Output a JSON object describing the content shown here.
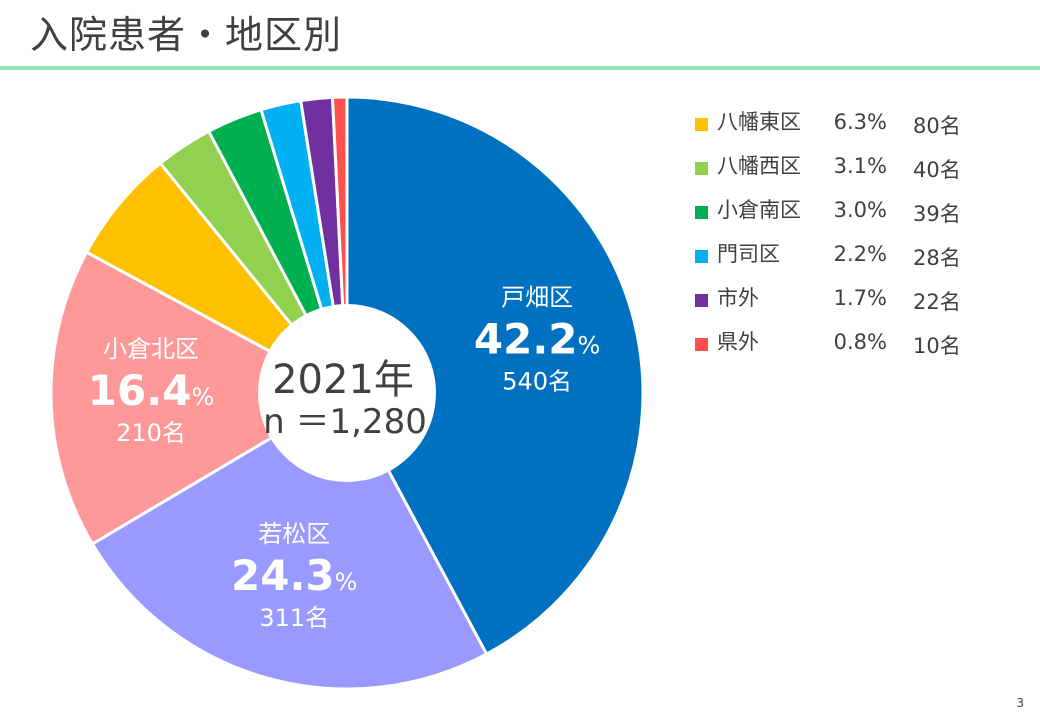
{
  "page": {
    "title": "入院患者・地区別",
    "page_number": "3"
  },
  "center": {
    "year_label": "2021年",
    "n_label": "n ＝1,280"
  },
  "chart_data": {
    "type": "pie",
    "title": "入院患者・地区別",
    "subtitle": "2021年 n＝1,280",
    "total": 1280,
    "start_angle": "12 o'clock",
    "direction": "clockwise",
    "donut_center": true,
    "legend_position": "right",
    "slices": [
      {
        "name": "戸畑区",
        "percent": 42.2,
        "percent_label": "42.2",
        "count": 540,
        "count_label": "540名",
        "color": "#0070c0"
      },
      {
        "name": "若松区",
        "percent": 24.3,
        "percent_label": "24.3",
        "count": 311,
        "count_label": "311名",
        "color": "#9999ff"
      },
      {
        "name": "小倉北区",
        "percent": 16.4,
        "percent_label": "16.4",
        "count": 210,
        "count_label": "210名",
        "color": "#ff9999"
      },
      {
        "name": "八幡東区",
        "percent": 6.3,
        "percent_label": "6.3%",
        "count": 80,
        "count_label": "80名",
        "color": "#ffc000"
      },
      {
        "name": "八幡西区",
        "percent": 3.1,
        "percent_label": "3.1%",
        "count": 40,
        "count_label": "40名",
        "color": "#92d050"
      },
      {
        "name": "小倉南区",
        "percent": 3.0,
        "percent_label": "3.0%",
        "count": 39,
        "count_label": "39名",
        "color": "#00b050"
      },
      {
        "name": "門司区",
        "percent": 2.2,
        "percent_label": "2.2%",
        "count": 28,
        "count_label": "28名",
        "color": "#00b0f0"
      },
      {
        "name": "市外",
        "percent": 1.7,
        "percent_label": "1.7%",
        "count": 22,
        "count_label": "22名",
        "color": "#7030a0"
      },
      {
        "name": "県外",
        "percent": 0.8,
        "percent_label": "0.8%",
        "count": 10,
        "count_label": "10名",
        "color": "#ff5050"
      }
    ]
  },
  "legend_items": [
    3,
    4,
    5,
    6,
    7,
    8
  ],
  "percent_unit": "%"
}
